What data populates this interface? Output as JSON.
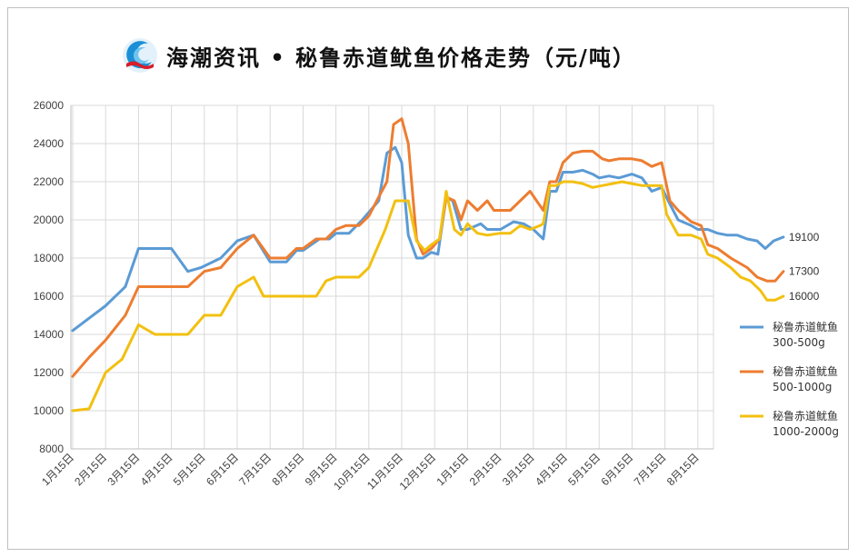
{
  "header": {
    "title": "海潮资讯 • 秘鲁赤道鱿鱼价格走势（元/吨）"
  },
  "chart_data": {
    "type": "line",
    "title": "海潮资讯 • 秘鲁赤道鱿鱼价格走势（元/吨）",
    "xlabel": "",
    "ylabel": "",
    "ylim": [
      8000,
      26000
    ],
    "yticks": [
      "8000",
      "10000",
      "12000",
      "14000",
      "16000",
      "18000",
      "20000",
      "22000",
      "24000",
      "26000"
    ],
    "grid": true,
    "legend_position": "right",
    "x_tick_labels": [
      "1月15日",
      "2月15日",
      "3月15日",
      "4月15日",
      "5月15日",
      "6月15日",
      "7月15日",
      "8月15日",
      "9月15日",
      "10月15日",
      "11月15日",
      "12月15日",
      "1月15日",
      "2月15日",
      "3月15日",
      "4月15日",
      "5月15日",
      "6月15日",
      "7月15日",
      "8月15日"
    ],
    "series": [
      {
        "name": "秘鲁赤道鱿鱼300-500g",
        "legend_lines": [
          "秘鲁赤道鱿鱼",
          "300-500g"
        ],
        "color": "#5b9bd5",
        "end_label": "19100",
        "points": [
          [
            0,
            14200
          ],
          [
            1,
            15500
          ],
          [
            1.6,
            16500
          ],
          [
            2,
            18500
          ],
          [
            3,
            18500
          ],
          [
            3.5,
            17300
          ],
          [
            3.9,
            17500
          ],
          [
            4.5,
            18000
          ],
          [
            5,
            18900
          ],
          [
            5.5,
            19200
          ],
          [
            6,
            17800
          ],
          [
            6.5,
            17800
          ],
          [
            6.8,
            18400
          ],
          [
            7,
            18400
          ],
          [
            7.5,
            19000
          ],
          [
            7.8,
            19000
          ],
          [
            8,
            19300
          ],
          [
            8.4,
            19300
          ],
          [
            8.8,
            20000
          ],
          [
            9.3,
            21000
          ],
          [
            9.55,
            23500
          ],
          [
            9.8,
            23800
          ],
          [
            10,
            23000
          ],
          [
            10.2,
            19200
          ],
          [
            10.45,
            18000
          ],
          [
            10.65,
            18000
          ],
          [
            10.9,
            18300
          ],
          [
            11.1,
            18200
          ],
          [
            11.35,
            21200
          ],
          [
            11.55,
            21000
          ],
          [
            11.8,
            19500
          ],
          [
            12,
            19500
          ],
          [
            12.4,
            19800
          ],
          [
            12.6,
            19500
          ],
          [
            13,
            19500
          ],
          [
            13.4,
            19900
          ],
          [
            13.7,
            19800
          ],
          [
            14,
            19500
          ],
          [
            14.3,
            19000
          ],
          [
            14.5,
            21500
          ],
          [
            14.7,
            21500
          ],
          [
            14.9,
            22500
          ],
          [
            15.2,
            22500
          ],
          [
            15.5,
            22600
          ],
          [
            15.8,
            22400
          ],
          [
            16,
            22200
          ],
          [
            16.3,
            22300
          ],
          [
            16.6,
            22200
          ],
          [
            17,
            22400
          ],
          [
            17.3,
            22200
          ],
          [
            17.6,
            21500
          ],
          [
            17.9,
            21700
          ],
          [
            18.1,
            21000
          ],
          [
            18.4,
            20000
          ],
          [
            18.8,
            19700
          ],
          [
            19,
            19500
          ],
          [
            19.3,
            19500
          ],
          [
            19.6,
            19300
          ],
          [
            19.9,
            19200
          ],
          [
            20.2,
            19200
          ],
          [
            20.5,
            19000
          ],
          [
            20.8,
            18900
          ],
          [
            21.05,
            18500
          ],
          [
            21.3,
            18900
          ],
          [
            21.6,
            19100
          ]
        ]
      },
      {
        "name": "秘鲁赤道鱿鱼500-1000g",
        "legend_lines": [
          "秘鲁赤道鱿鱼",
          "500-1000g"
        ],
        "color": "#ed7d31",
        "end_label": "17300",
        "points": [
          [
            0,
            11800
          ],
          [
            0.5,
            12800
          ],
          [
            1,
            13700
          ],
          [
            1.6,
            15000
          ],
          [
            2,
            16500
          ],
          [
            2.5,
            16500
          ],
          [
            3,
            16500
          ],
          [
            3.5,
            16500
          ],
          [
            4,
            17300
          ],
          [
            4.5,
            17500
          ],
          [
            5,
            18500
          ],
          [
            5.5,
            19200
          ],
          [
            6,
            18000
          ],
          [
            6.5,
            18000
          ],
          [
            6.8,
            18500
          ],
          [
            7,
            18500
          ],
          [
            7.4,
            19000
          ],
          [
            7.7,
            19000
          ],
          [
            8,
            19500
          ],
          [
            8.3,
            19700
          ],
          [
            8.7,
            19700
          ],
          [
            9,
            20200
          ],
          [
            9.3,
            21200
          ],
          [
            9.55,
            22000
          ],
          [
            9.75,
            25000
          ],
          [
            10,
            25300
          ],
          [
            10.2,
            24000
          ],
          [
            10.45,
            19000
          ],
          [
            10.65,
            18200
          ],
          [
            10.9,
            18500
          ],
          [
            11.15,
            19000
          ],
          [
            11.35,
            21200
          ],
          [
            11.6,
            21000
          ],
          [
            11.8,
            20000
          ],
          [
            12,
            21000
          ],
          [
            12.3,
            20500
          ],
          [
            12.6,
            21000
          ],
          [
            12.8,
            20500
          ],
          [
            13.3,
            20500
          ],
          [
            13.6,
            21000
          ],
          [
            13.9,
            21500
          ],
          [
            14.1,
            21000
          ],
          [
            14.3,
            20500
          ],
          [
            14.5,
            22000
          ],
          [
            14.7,
            22000
          ],
          [
            14.9,
            23000
          ],
          [
            15.2,
            23500
          ],
          [
            15.5,
            23600
          ],
          [
            15.8,
            23600
          ],
          [
            16.1,
            23200
          ],
          [
            16.3,
            23100
          ],
          [
            16.6,
            23200
          ],
          [
            17,
            23200
          ],
          [
            17.3,
            23100
          ],
          [
            17.6,
            22800
          ],
          [
            17.9,
            23000
          ],
          [
            18.15,
            21000
          ],
          [
            18.4,
            20500
          ],
          [
            18.8,
            19900
          ],
          [
            19.1,
            19700
          ],
          [
            19.3,
            18700
          ],
          [
            19.6,
            18500
          ],
          [
            20,
            18000
          ],
          [
            20.5,
            17500
          ],
          [
            20.8,
            17000
          ],
          [
            21.1,
            16800
          ],
          [
            21.35,
            16800
          ],
          [
            21.6,
            17300
          ]
        ]
      },
      {
        "name": "秘鲁赤道鱿鱼1000-2000g",
        "legend_lines": [
          "秘鲁赤道鱿鱼",
          "1000-2000g"
        ],
        "color": "#f2c011",
        "end_label": "16000",
        "points": [
          [
            0,
            10000
          ],
          [
            0.5,
            10100
          ],
          [
            1,
            12000
          ],
          [
            1.5,
            12700
          ],
          [
            2,
            14500
          ],
          [
            2.5,
            14000
          ],
          [
            3,
            14000
          ],
          [
            3.5,
            14000
          ],
          [
            4,
            15000
          ],
          [
            4.5,
            15000
          ],
          [
            5,
            16500
          ],
          [
            5.5,
            17000
          ],
          [
            5.8,
            16000
          ],
          [
            6.3,
            16000
          ],
          [
            6.8,
            16000
          ],
          [
            7,
            16000
          ],
          [
            7.4,
            16000
          ],
          [
            7.7,
            16800
          ],
          [
            8,
            17000
          ],
          [
            8.4,
            17000
          ],
          [
            8.7,
            17000
          ],
          [
            9,
            17500
          ],
          [
            9.5,
            19500
          ],
          [
            9.8,
            21000
          ],
          [
            10.2,
            21000
          ],
          [
            10.45,
            18900
          ],
          [
            10.7,
            18400
          ],
          [
            10.9,
            18700
          ],
          [
            11.15,
            19000
          ],
          [
            11.35,
            21500
          ],
          [
            11.6,
            19500
          ],
          [
            11.8,
            19200
          ],
          [
            12,
            19800
          ],
          [
            12.3,
            19300
          ],
          [
            12.6,
            19200
          ],
          [
            13,
            19300
          ],
          [
            13.3,
            19300
          ],
          [
            13.6,
            19700
          ],
          [
            13.9,
            19500
          ],
          [
            14.2,
            19700
          ],
          [
            14.3,
            19800
          ],
          [
            14.5,
            21800
          ],
          [
            14.7,
            21800
          ],
          [
            14.9,
            22000
          ],
          [
            15.2,
            22000
          ],
          [
            15.5,
            21900
          ],
          [
            15.8,
            21700
          ],
          [
            16.1,
            21800
          ],
          [
            16.4,
            21900
          ],
          [
            16.7,
            22000
          ],
          [
            17,
            21900
          ],
          [
            17.3,
            21800
          ],
          [
            17.6,
            21800
          ],
          [
            17.9,
            21800
          ],
          [
            18.05,
            20300
          ],
          [
            18.4,
            19200
          ],
          [
            18.8,
            19200
          ],
          [
            19.1,
            19000
          ],
          [
            19.3,
            18200
          ],
          [
            19.6,
            18000
          ],
          [
            20,
            17500
          ],
          [
            20.3,
            17000
          ],
          [
            20.6,
            16800
          ],
          [
            20.9,
            16300
          ],
          [
            21.1,
            15800
          ],
          [
            21.35,
            15800
          ],
          [
            21.6,
            16000
          ]
        ]
      }
    ]
  }
}
